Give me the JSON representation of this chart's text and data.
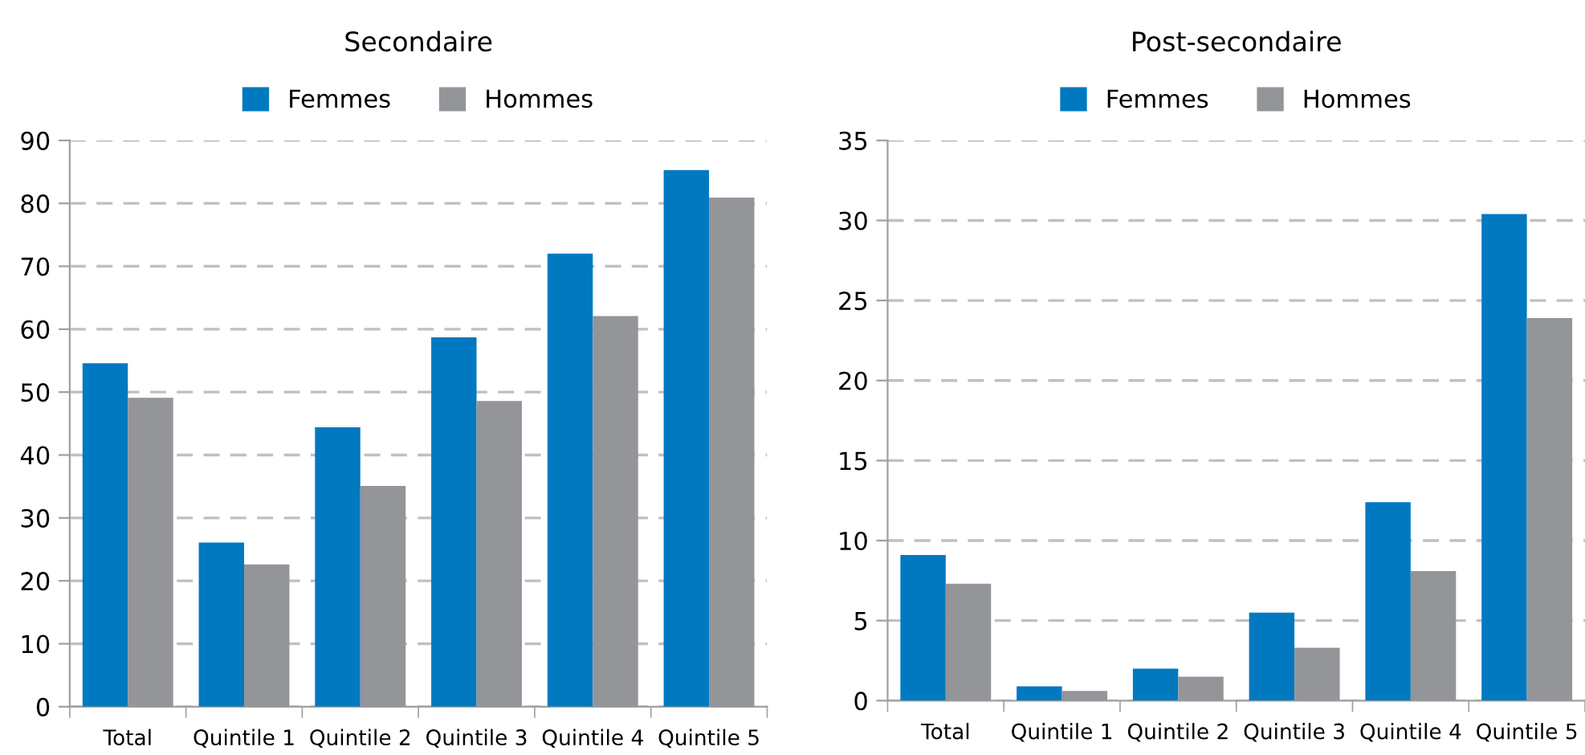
{
  "chart_data": [
    {
      "type": "bar",
      "title": "Secondaire",
      "categories": [
        "Total",
        "Quintile 1",
        "Quintile 2",
        "Quintile 3",
        "Quintile 4",
        "Quintile 5"
      ],
      "series": [
        {
          "name": "Femmes",
          "color": "#0079c1",
          "values": [
            54.6,
            26.1,
            44.4,
            58.7,
            72.0,
            85.3
          ]
        },
        {
          "name": "Hommes",
          "color": "#939598",
          "values": [
            49.1,
            22.6,
            35.1,
            48.6,
            62.1,
            80.9
          ]
        }
      ],
      "ylim": [
        0,
        90
      ],
      "yticks": [
        0,
        10,
        20,
        30,
        40,
        50,
        60,
        70,
        80,
        90
      ],
      "grid": "y",
      "legend": "top"
    },
    {
      "type": "bar",
      "title": "Post-secondaire",
      "categories": [
        "Total",
        "Quintile 1",
        "Quintile 2",
        "Quintile 3",
        "Quintile 4",
        "Quintile 5"
      ],
      "series": [
        {
          "name": "Femmes",
          "color": "#0079c1",
          "values": [
            9.1,
            0.9,
            2.0,
            5.5,
            12.4,
            30.4
          ]
        },
        {
          "name": "Hommes",
          "color": "#939598",
          "values": [
            7.3,
            0.6,
            1.5,
            3.3,
            8.1,
            23.9
          ]
        }
      ],
      "ylim": [
        0,
        35
      ],
      "yticks": [
        0,
        5,
        10,
        15,
        20,
        25,
        30,
        35
      ],
      "grid": "y",
      "legend": "top"
    }
  ]
}
